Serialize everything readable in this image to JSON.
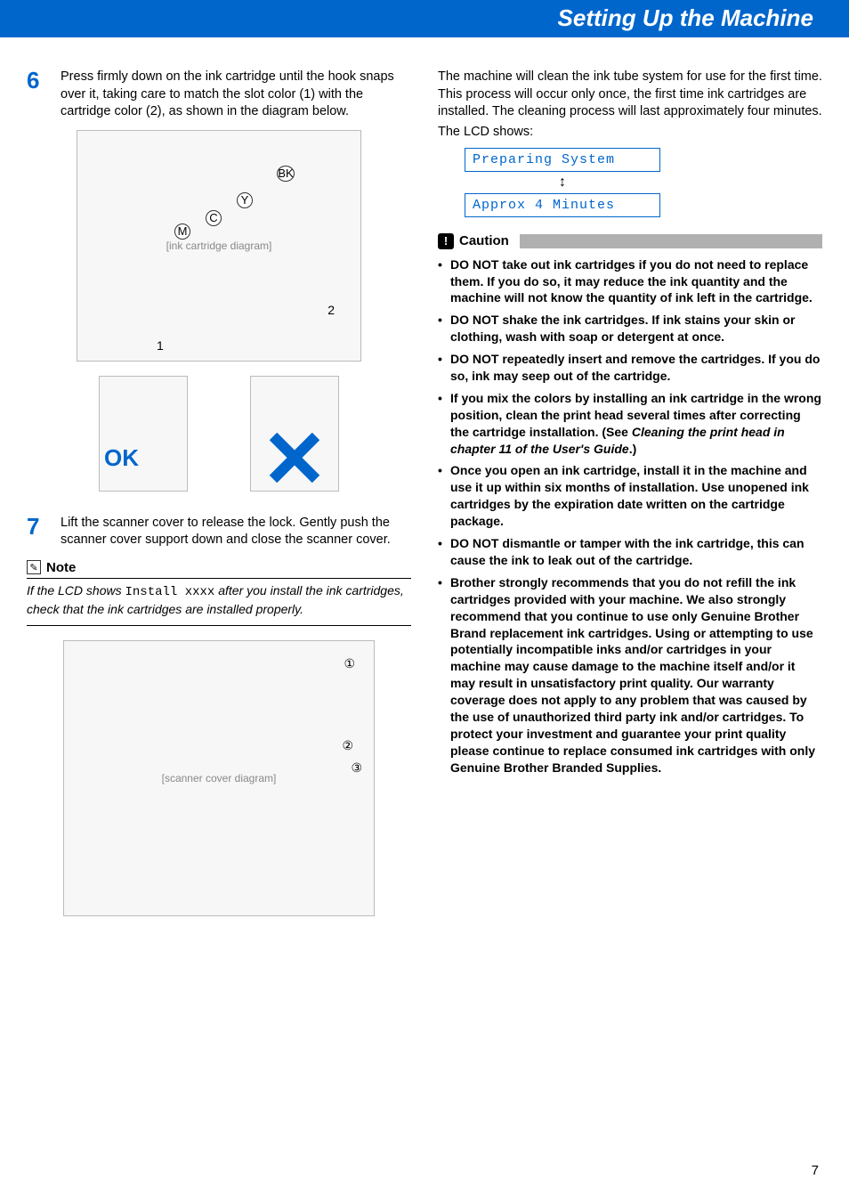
{
  "header": {
    "title": "Setting Up the Machine"
  },
  "left": {
    "step6": {
      "num": "6",
      "text": "Press firmly down on the ink cartridge until the hook snaps over it, taking care to match the slot color (1) with the cartridge color (2), as shown in the diagram below."
    },
    "diagram1": {
      "label": "[ink cartridge diagram]",
      "slot_label": "1",
      "cartridge_label": "2",
      "colors": {
        "bk": "BK",
        "y": "Y",
        "c": "C",
        "m": "M"
      }
    },
    "ok_label": "OK",
    "step7": {
      "num": "7",
      "text": "Lift the scanner cover to release the lock. Gently push the scanner cover support down and close the scanner cover."
    },
    "note": {
      "title": "Note",
      "prefix": "If the LCD shows ",
      "mono": "Install xxxx",
      "suffix": " after you install the ink cartridges, check that the ink cartridges are installed properly."
    },
    "diagram2": {
      "label": "[scanner cover diagram]",
      "callouts": [
        "①",
        "②",
        "③"
      ]
    }
  },
  "right": {
    "intro": "The machine will clean the ink tube system for use for the first time. This process will occur only once, the first time ink cartridges are installed. The cleaning process will last approximately four minutes.",
    "lcd_pre": "The LCD shows:",
    "lcd_line1": "Preparing System",
    "lcd_arrow": "↕",
    "lcd_line2": "Approx 4 Minutes",
    "caution_title": "Caution",
    "cautions": [
      {
        "text": "DO NOT take out ink cartridges if you do not need to replace them. If you do so, it may reduce the ink quantity and the machine will not know the quantity of ink left in the cartridge."
      },
      {
        "text": "DO NOT shake the ink cartridges. If ink stains your skin or clothing, wash with soap or detergent at once."
      },
      {
        "text": "DO NOT repeatedly insert and remove the cartridges. If you do so, ink may seep out of the cartridge."
      },
      {
        "text": "If you mix the colors by installing an ink cartridge in the wrong position, clean the print head several times after correcting the cartridge installation. (See ",
        "ital": "Cleaning the print head in chapter 11 of the User's Guide",
        "after": ".)"
      },
      {
        "text": "Once you open an ink cartridge, install it in the machine and use it up within six months of installation. Use unopened ink cartridges by the expiration date written on the cartridge package."
      },
      {
        "text": "DO NOT dismantle or tamper with the ink cartridge, this can cause the ink to leak out of the cartridge."
      },
      {
        "text": "Brother strongly recommends that you do not refill the ink cartridges provided with your machine. We also strongly recommend that you continue to use only Genuine Brother Brand replacement ink cartridges. Using or attempting to use potentially incompatible inks and/or cartridges in your machine may cause damage to the machine itself and/or it may result in unsatisfactory print quality. Our warranty coverage does not apply to any problem that was caused by the use of unauthorized third party ink and/or cartridges. To protect your investment and guarantee your print quality please continue to replace consumed ink cartridges with only Genuine Brother Branded Supplies."
      }
    ]
  },
  "page_number": "7"
}
